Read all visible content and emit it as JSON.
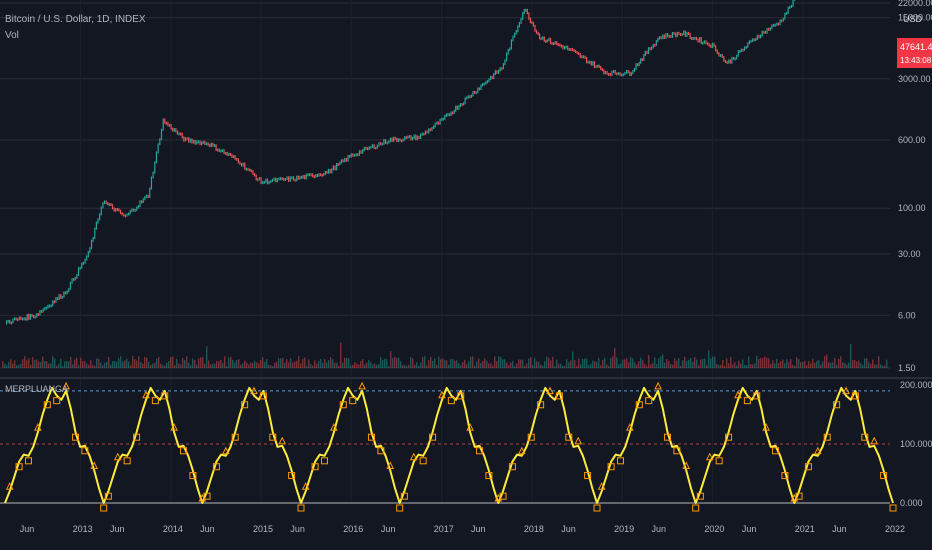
{
  "header": {
    "symbol_title": "Bitcoin / U.S. Dollar, 1D, INDEX",
    "volume_label": "Vol",
    "currency": "USD",
    "price_badge": "47641.40",
    "countdown_badge": "13:43:08"
  },
  "indicator": {
    "name": "MERPLUANGA",
    "y_ticks": [
      "200.000",
      "100.000",
      "0.000"
    ],
    "upper_level": 190,
    "mid_level": 100
  },
  "colors": {
    "background": "#131722",
    "grid": "#2a2e39",
    "price_up": "#26a69a",
    "price_down": "#ef5350",
    "price_line": "#8b3a3a",
    "badge": "#f23645",
    "osc_line": "#ffeb3b",
    "osc_marker": "#ff9800",
    "upper_dash": "#5b9bd5",
    "mid_dash": "#b04040"
  },
  "chart_data": [
    {
      "type": "line",
      "title": "Bitcoin / U.S. Dollar, 1D, INDEX",
      "ylabel": "USD",
      "log_scale": true,
      "y_ticks": [
        "22000.00",
        "15000.00",
        "3000.00",
        "600.00",
        "100.00",
        "30.00",
        "6.00",
        "1.50"
      ],
      "x_ticks": [
        "Jun",
        "2013",
        "Jun",
        "2014",
        "Jun",
        "2015",
        "Jun",
        "2016",
        "Jun",
        "2017",
        "Jun",
        "2018",
        "Jun",
        "2019",
        "Jun",
        "2020",
        "Jun",
        "2021",
        "Jun",
        "2022"
      ],
      "x": [
        "2012-03",
        "2012-07",
        "2012-11",
        "2013-02",
        "2013-04",
        "2013-07",
        "2013-10",
        "2013-12",
        "2014-03",
        "2014-06",
        "2014-10",
        "2015-01",
        "2015-06",
        "2015-10",
        "2016-01",
        "2016-06",
        "2016-10",
        "2017-01",
        "2017-05",
        "2017-09",
        "2017-12",
        "2018-02",
        "2018-06",
        "2018-11",
        "2019-02",
        "2019-06",
        "2019-09",
        "2020-01",
        "2020-03",
        "2020-07",
        "2020-10",
        "2021-01",
        "2021-04",
        "2021-06",
        "2021-09",
        "2021-11",
        "2021-12"
      ],
      "values": [
        5,
        6,
        11,
        30,
        120,
        80,
        140,
        1000,
        600,
        550,
        350,
        200,
        220,
        260,
        400,
        600,
        650,
        1000,
        2000,
        4000,
        19000,
        9000,
        6500,
        3500,
        3500,
        9000,
        10000,
        7200,
        4500,
        9200,
        13500,
        33000,
        60000,
        34000,
        47000,
        65000,
        47641.4
      ],
      "current_price": 47641.4
    },
    {
      "type": "line",
      "title": "MERPLUANGA",
      "ylim": [
        0,
        200
      ],
      "y_ticks": [
        "200.000",
        "100.000",
        "0.000"
      ],
      "cycles": 9,
      "values": [
        0,
        20,
        45,
        70,
        82,
        80,
        95,
        120,
        150,
        175,
        195,
        182,
        175,
        190,
        160,
        120,
        95,
        97,
        80,
        55,
        25,
        0
      ]
    }
  ]
}
